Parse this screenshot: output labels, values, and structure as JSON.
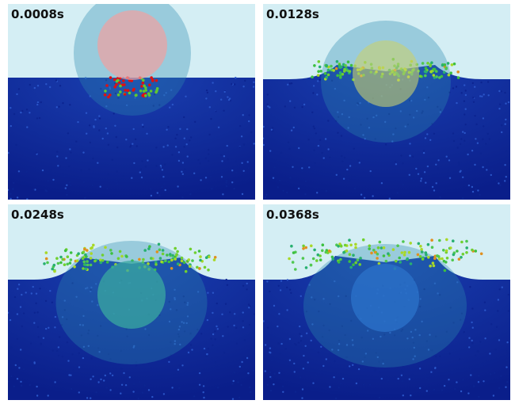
{
  "panels": [
    {
      "label": "0.0008s"
    },
    {
      "label": "0.0128s"
    },
    {
      "label": "0.0248s"
    },
    {
      "label": "0.0368s"
    }
  ]
}
